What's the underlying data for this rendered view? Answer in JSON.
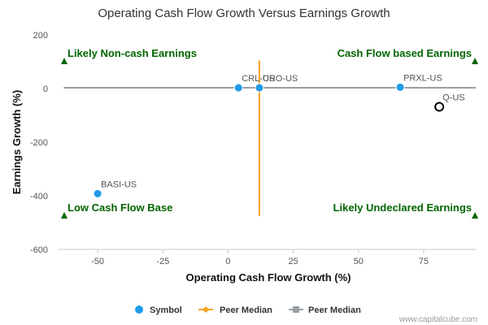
{
  "chart_data": {
    "type": "scatter",
    "title": "Operating Cash Flow Growth Versus Earnings Growth",
    "xlabel": "Operating Cash Flow Growth (%)",
    "ylabel": "Earnings Growth (%)",
    "xlim": [
      -65,
      95
    ],
    "ylim": [
      -600,
      200
    ],
    "x_ticks": [
      -50,
      -25,
      0,
      25,
      50,
      75
    ],
    "y_ticks": [
      200,
      0,
      -200,
      -400,
      -600
    ],
    "grid": false,
    "legend_position": "bottom",
    "series": [
      {
        "name": "Symbol",
        "color": "#1e9be9",
        "points": [
          {
            "label": "CRL-US",
            "x": 4,
            "y": 3
          },
          {
            "label": "CRO-US",
            "x": 12,
            "y": 3
          },
          {
            "label": "PRXL-US",
            "x": 66,
            "y": 5
          },
          {
            "label": "BASI-US",
            "x": -50,
            "y": -392
          }
        ]
      },
      {
        "name": "Peer Median",
        "color": "#f7a11a",
        "kind": "vertical-line",
        "x": 12,
        "y_range": [
          -475,
          105
        ]
      },
      {
        "name": "Peer Median",
        "color": "#9a9fa6",
        "kind": "horizontal-line",
        "y": 3,
        "x_range": [
          -63,
          95
        ]
      }
    ],
    "highlight": {
      "label": "Q-US",
      "x": 81,
      "y": -68
    },
    "quadrant_labels": [
      {
        "text": "Likely Non-cash Earnings",
        "corner": "top-left"
      },
      {
        "text": "Cash Flow based Earnings",
        "corner": "top-right"
      },
      {
        "text": "Low Cash Flow Base",
        "corner": "bottom-left"
      },
      {
        "text": "Likely Undeclared Earnings",
        "corner": "bottom-right"
      }
    ],
    "quadrant_color": "#006400",
    "credit": "www.capitalcube.com"
  }
}
